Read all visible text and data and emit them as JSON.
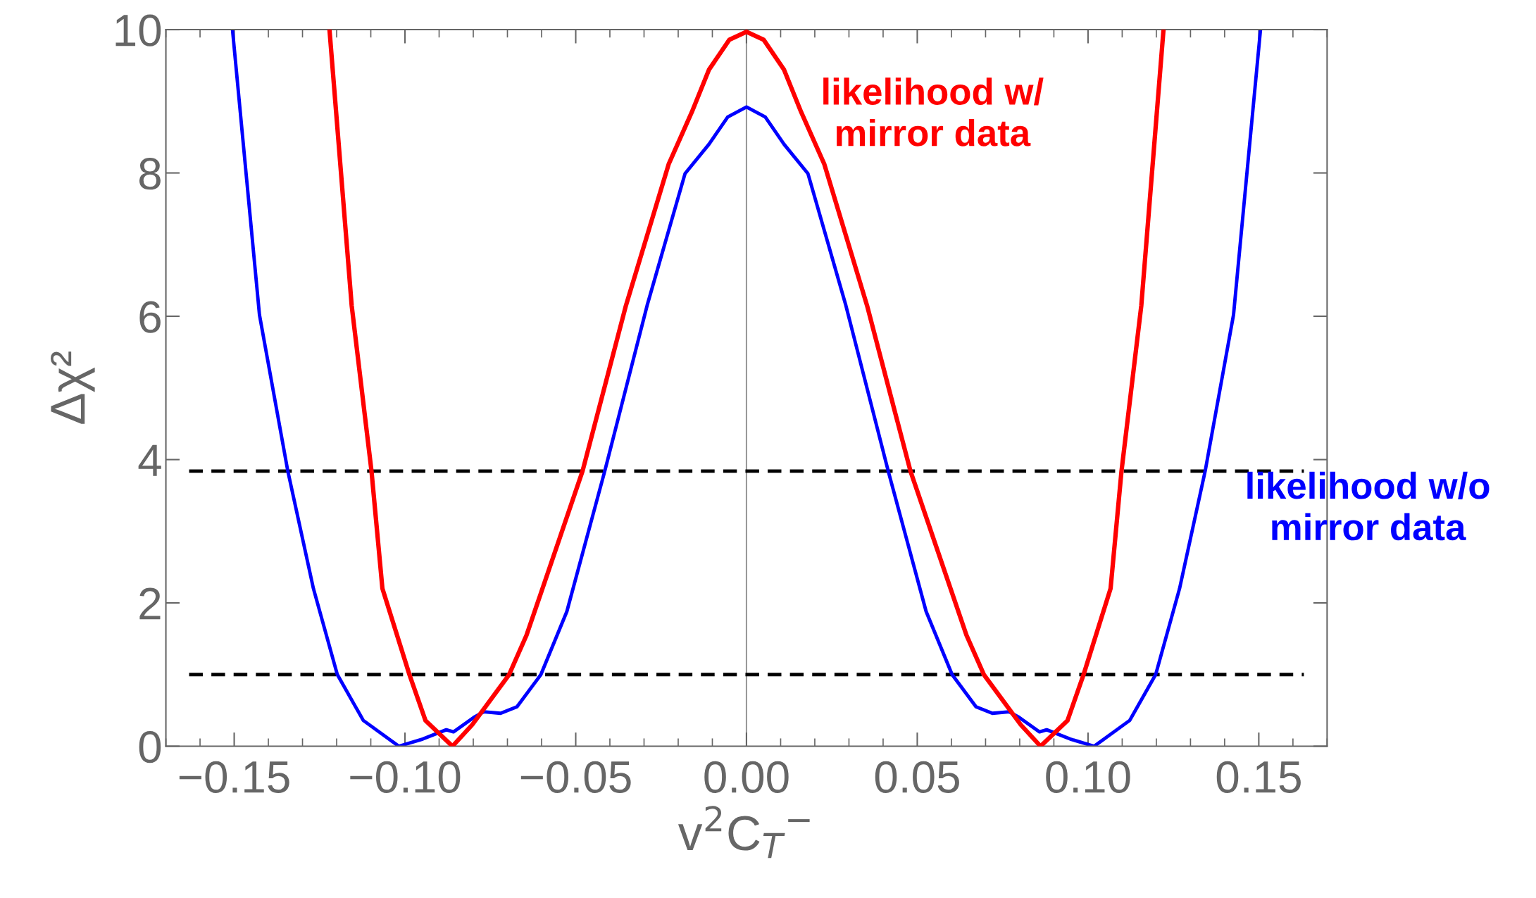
{
  "chart_data": {
    "type": "line",
    "xlabel": "v$^{2}$C$_{T}$$^{−}$",
    "ylabel": "Δχ²",
    "xlim": [
      -0.17,
      0.17
    ],
    "ylim": [
      0,
      10
    ],
    "xticks": [
      {
        "value": -0.15,
        "label": "−0.15"
      },
      {
        "value": -0.1,
        "label": "−0.10"
      },
      {
        "value": -0.05,
        "label": "−0.05"
      },
      {
        "value": 0,
        "label": "0.00"
      },
      {
        "value": 0.05,
        "label": "0.05"
      },
      {
        "value": 0.1,
        "label": "0.10"
      },
      {
        "value": 0.15,
        "label": "0.15"
      }
    ],
    "yticks": [
      0,
      2,
      4,
      6,
      8,
      10
    ],
    "grid": false,
    "legend": false,
    "marker": "none",
    "line_style": "solid",
    "series": [
      {
        "name": "likelihood w/\nmirror data",
        "color": "#ff0000",
        "x": [
          -0.1221,
          -0.1156,
          -0.1098,
          -0.1066,
          -0.0987,
          -0.094,
          -0.0861,
          -0.0803,
          -0.0695,
          -0.0644,
          -0.048,
          -0.0353,
          -0.0228,
          -0.016,
          -0.011,
          -0.005,
          0,
          0.005,
          0.011,
          0.016,
          0.0228,
          0.0353,
          0.048,
          0.0644,
          0.0695,
          0.0803,
          0.0861,
          0.094,
          0.0987,
          0.1066,
          0.1098,
          0.1156,
          0.1221
        ],
        "values": [
          10,
          6.15,
          3.84,
          2.2,
          1,
          0.36,
          0,
          0.3,
          1,
          1.55,
          3.84,
          6.15,
          8.12,
          8.85,
          9.44,
          9.86,
          9.97,
          9.86,
          9.44,
          8.85,
          8.12,
          6.15,
          3.84,
          1.55,
          1,
          0.3,
          0,
          0.36,
          1,
          2.2,
          3.84,
          6.15,
          10
        ]
      },
      {
        "name": "likelihood w/o\nmirror data",
        "color": "#0000ff",
        "x": [
          -0.1505,
          -0.1426,
          -0.1343,
          -0.1268,
          -0.1198,
          -0.1122,
          -0.1018,
          -0.0948,
          -0.0879,
          -0.0858,
          -0.0796,
          -0.0769,
          -0.072,
          -0.0672,
          -0.0602,
          -0.0526,
          -0.0415,
          -0.0291,
          -0.018,
          -0.011,
          -0.0055,
          0,
          0.0055,
          0.011,
          0.018,
          0.0291,
          0.0415,
          0.0526,
          0.0602,
          0.0672,
          0.072,
          0.0769,
          0.0796,
          0.0858,
          0.0879,
          0.0948,
          0.1018,
          0.1122,
          0.1198,
          0.1268,
          0.1343,
          0.1426,
          0.1505
        ],
        "values": [
          10,
          6.02,
          3.84,
          2.2,
          1,
          0.36,
          0,
          0.1,
          0.23,
          0.2,
          0.41,
          0.48,
          0.46,
          0.55,
          1,
          1.88,
          3.84,
          6.15,
          7.99,
          8.4,
          8.78,
          8.92,
          8.78,
          8.4,
          7.99,
          6.15,
          3.84,
          1.88,
          1,
          0.55,
          0.46,
          0.48,
          0.41,
          0.2,
          0.23,
          0.1,
          0,
          0.36,
          1,
          2.2,
          3.84,
          6.02,
          10
        ]
      }
    ],
    "ref_lines": [
      {
        "axis": "x",
        "value": 0,
        "color": "#999999",
        "line_style": "solid"
      },
      {
        "axis": "y",
        "value": 3.84,
        "color": "#000000",
        "line_style": "dashed"
      },
      {
        "axis": "y",
        "value": 1,
        "color": "#000000",
        "line_style": "dashed"
      }
    ]
  }
}
